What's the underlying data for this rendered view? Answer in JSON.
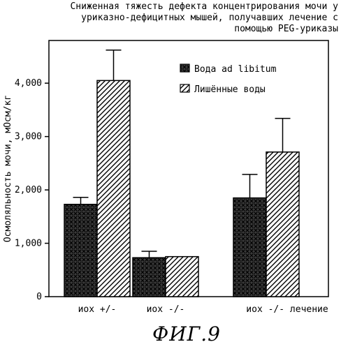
{
  "title_lines": [
    "Сниженная тяжесть дефекта концентрирования мочи у",
    "уриказно-дефицитных мышей, получавших лечение с",
    "помощью PEG-уриказы"
  ],
  "figure_label": "ФИГ.9",
  "chart_data": {
    "type": "bar",
    "categories": [
      "иох +/-",
      "иох -/-",
      "иох -/- лечение"
    ],
    "series": [
      {
        "name": "Вода ad libitum",
        "values": [
          1730,
          730,
          1850
        ],
        "errors": [
          130,
          120,
          440
        ],
        "pattern": "crosshatch"
      },
      {
        "name": "Лишённые воды",
        "values": [
          4050,
          750,
          2710
        ],
        "errors": [
          570,
          0,
          630
        ],
        "pattern": "diagonal"
      }
    ],
    "ylabel": "Осмоляльность мочи, мОсм/кг",
    "yticks": [
      0,
      1000,
      2000,
      3000,
      4000
    ],
    "yticklabels": [
      "0",
      "1,000",
      "2,000",
      "3,000",
      "4,000"
    ],
    "ylim": [
      0,
      4800
    ],
    "legend_position": "top-right",
    "grid": false
  }
}
